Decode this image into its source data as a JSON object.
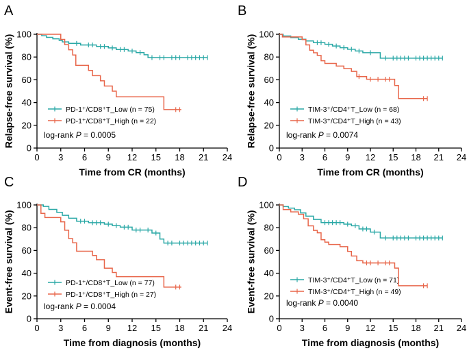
{
  "colors": {
    "low": "#2aa8a6",
    "high": "#e8664a"
  },
  "chart_data": [
    {
      "type": "line",
      "panel": "A",
      "ylabel": "Relapse-free survival (%)",
      "xlabel": "Time from CR (months)",
      "xlim": [
        0,
        24
      ],
      "ylim": [
        0,
        100
      ],
      "xticks": [
        "0",
        "3",
        "6",
        "9",
        "12",
        "15",
        "18",
        "21",
        "24"
      ],
      "yticks": [
        "0",
        "20",
        "40",
        "60",
        "80",
        "100"
      ],
      "stat_prefix": "log-rank ",
      "stat_symbol": "P",
      "stat_value": " = 0.0005",
      "series": [
        {
          "name": "PD-1⁺/CD8⁺T_Low (n = 75)",
          "color_key": "low",
          "steps": [
            [
              0,
              100
            ],
            [
              0.6,
              98.7
            ],
            [
              1.2,
              97.3
            ],
            [
              2.0,
              96.0
            ],
            [
              2.8,
              94.6
            ],
            [
              3.2,
              93.3
            ],
            [
              4.0,
              92.0
            ],
            [
              5.5,
              90.6
            ],
            [
              7.5,
              89.3
            ],
            [
              9.0,
              88.0
            ],
            [
              10.0,
              86.6
            ],
            [
              11.5,
              85.3
            ],
            [
              12.5,
              83.9
            ],
            [
              13.5,
              82.0
            ],
            [
              14.0,
              79.5
            ],
            [
              21.5,
              79.5
            ]
          ],
          "censor": [
            5,
            6.5,
            7,
            8,
            8.5,
            9.5,
            10.5,
            11,
            12,
            13,
            14.5,
            15.5,
            16,
            17,
            17.5,
            18,
            19,
            19.5,
            20,
            20.5,
            21,
            21.5
          ]
        },
        {
          "name": "PD-1⁺/CD8⁺T_High (n = 22)",
          "color_key": "high",
          "steps": [
            [
              0,
              100
            ],
            [
              3.0,
              95.5
            ],
            [
              3.5,
              90.9
            ],
            [
              4.0,
              86.4
            ],
            [
              4.5,
              81.8
            ],
            [
              4.9,
              72.7
            ],
            [
              6.5,
              68.2
            ],
            [
              7.0,
              63.6
            ],
            [
              8.0,
              59.1
            ],
            [
              8.5,
              54.5
            ],
            [
              9.5,
              50.0
            ],
            [
              10.0,
              45.0
            ],
            [
              16.0,
              33.8
            ],
            [
              18.2,
              33.8
            ]
          ],
          "censor": [
            17.5,
            18.0
          ]
        }
      ]
    },
    {
      "type": "line",
      "panel": "B",
      "ylabel": "Relapse-free survival (%)",
      "xlabel": "Time from CR (months)",
      "xlim": [
        0,
        24
      ],
      "ylim": [
        0,
        100
      ],
      "xticks": [
        "0",
        "3",
        "6",
        "9",
        "12",
        "15",
        "18",
        "21",
        "24"
      ],
      "yticks": [
        "0",
        "20",
        "40",
        "60",
        "80",
        "100"
      ],
      "stat_prefix": "log-rank ",
      "stat_symbol": "P",
      "stat_value": " = 0.0074",
      "series": [
        {
          "name": "TIM-3⁺/CD4⁺T_Low (n = 68)",
          "color_key": "low",
          "steps": [
            [
              0,
              100
            ],
            [
              0.5,
              98.5
            ],
            [
              1.5,
              97.1
            ],
            [
              2.5,
              95.6
            ],
            [
              3.5,
              94.1
            ],
            [
              4.5,
              92.6
            ],
            [
              6.0,
              91.2
            ],
            [
              7.0,
              89.7
            ],
            [
              8.0,
              88.2
            ],
            [
              9.0,
              86.8
            ],
            [
              10.0,
              85.3
            ],
            [
              11.0,
              83.8
            ],
            [
              13.3,
              79.0
            ],
            [
              21.5,
              79.0
            ]
          ],
          "censor": [
            5,
            5.5,
            6.5,
            7.5,
            8.5,
            9.5,
            10.5,
            12,
            14,
            15,
            15.5,
            16,
            16.5,
            17,
            18,
            18.5,
            19,
            19.5,
            20,
            20.5,
            21,
            21.5
          ]
        },
        {
          "name": "TIM-3⁺/CD4⁺T_High (n = 43)",
          "color_key": "high",
          "steps": [
            [
              0,
              100
            ],
            [
              0.4,
              97.7
            ],
            [
              3.0,
              95.3
            ],
            [
              3.5,
              90.7
            ],
            [
              4.0,
              86.0
            ],
            [
              4.5,
              83.7
            ],
            [
              5.0,
              81.4
            ],
            [
              5.5,
              76.7
            ],
            [
              6.0,
              74.4
            ],
            [
              7.5,
              72.1
            ],
            [
              8.5,
              69.8
            ],
            [
              9.5,
              67.4
            ],
            [
              10.2,
              62.8
            ],
            [
              11.5,
              60.5
            ],
            [
              15.2,
              55.0
            ],
            [
              15.7,
              43.5
            ],
            [
              19.5,
              43.5
            ]
          ],
          "censor": [
            10.5,
            12,
            13,
            14,
            14.5,
            19,
            19.5
          ]
        }
      ]
    },
    {
      "type": "line",
      "panel": "C",
      "ylabel": "Event-free survival (%)",
      "xlabel": "Time from diagnosis (months)",
      "xlim": [
        0,
        24
      ],
      "ylim": [
        0,
        100
      ],
      "xticks": [
        "0",
        "3",
        "6",
        "9",
        "12",
        "15",
        "18",
        "21",
        "24"
      ],
      "yticks": [
        "0",
        "20",
        "40",
        "60",
        "80",
        "100"
      ],
      "stat_prefix": "log-rank ",
      "stat_symbol": "P",
      "stat_value": " = 0.0004",
      "series": [
        {
          "name": "PD-1⁺/CD8⁺T_Low (n = 77)",
          "color_key": "low",
          "steps": [
            [
              0,
              100
            ],
            [
              0.8,
              98.7
            ],
            [
              1.5,
              96.1
            ],
            [
              2.5,
              93.5
            ],
            [
              3.2,
              90.9
            ],
            [
              4.0,
              88.3
            ],
            [
              5.0,
              85.7
            ],
            [
              6.5,
              84.4
            ],
            [
              8.5,
              83.1
            ],
            [
              9.5,
              81.8
            ],
            [
              10.5,
              80.5
            ],
            [
              12.0,
              77.9
            ],
            [
              14.5,
              75.3
            ],
            [
              15.5,
              70.0
            ],
            [
              16.0,
              66.5
            ],
            [
              21.5,
              66.5
            ]
          ],
          "censor": [
            5.5,
            6,
            7,
            7.5,
            8,
            9,
            10,
            11,
            11.5,
            12.5,
            13,
            14,
            15,
            16.5,
            17,
            18,
            18.5,
            19,
            19.5,
            20,
            20.5,
            21,
            21.5
          ]
        },
        {
          "name": "PD-1⁺/CD8⁺T_High (n = 27)",
          "color_key": "high",
          "steps": [
            [
              0,
              100
            ],
            [
              0.5,
              92.6
            ],
            [
              1.0,
              88.9
            ],
            [
              3.0,
              85.2
            ],
            [
              3.5,
              77.8
            ],
            [
              4.0,
              70.4
            ],
            [
              4.5,
              66.7
            ],
            [
              5.0,
              59.3
            ],
            [
              7.0,
              55.6
            ],
            [
              7.5,
              51.9
            ],
            [
              8.5,
              44.4
            ],
            [
              9.5,
              40.7
            ],
            [
              10.0,
              37.0
            ],
            [
              16.0,
              27.8
            ],
            [
              18.2,
              27.8
            ]
          ],
          "censor": [
            17.5,
            18.0
          ]
        }
      ]
    },
    {
      "type": "line",
      "panel": "D",
      "ylabel": "Event-free survival (%)",
      "xlabel": "Time from diagnosis (months)",
      "xlim": [
        0,
        24
      ],
      "ylim": [
        0,
        100
      ],
      "xticks": [
        "0",
        "3",
        "6",
        "9",
        "12",
        "15",
        "18",
        "21",
        "24"
      ],
      "yticks": [
        "0",
        "20",
        "40",
        "60",
        "80",
        "100"
      ],
      "stat_prefix": "log-rank ",
      "stat_symbol": "P",
      "stat_value": " = 0.0040",
      "series": [
        {
          "name": "TIM-3⁺/CD4⁺T_Low (n = 71)",
          "color_key": "low",
          "steps": [
            [
              0,
              100
            ],
            [
              0.5,
              98.6
            ],
            [
              1.2,
              97.2
            ],
            [
              2.0,
              95.8
            ],
            [
              2.8,
              93.0
            ],
            [
              3.5,
              90.1
            ],
            [
              4.5,
              87.3
            ],
            [
              5.5,
              84.5
            ],
            [
              8.5,
              83.1
            ],
            [
              9.5,
              81.7
            ],
            [
              10.5,
              78.9
            ],
            [
              12.0,
              76.1
            ],
            [
              13.3,
              71.0
            ],
            [
              21.5,
              71.0
            ]
          ],
          "censor": [
            6,
            6.5,
            7,
            7.5,
            8,
            9,
            10,
            11,
            11.5,
            12.5,
            14,
            15,
            15.5,
            16,
            16.5,
            17,
            18,
            18.5,
            19,
            19.5,
            20,
            20.5,
            21,
            21.5
          ]
        },
        {
          "name": "TIM-3⁺/CD4⁺T_High (n = 49)",
          "color_key": "high",
          "steps": [
            [
              0,
              100
            ],
            [
              0.5,
              95.9
            ],
            [
              1.5,
              93.9
            ],
            [
              2.5,
              91.8
            ],
            [
              3.2,
              87.8
            ],
            [
              3.8,
              81.6
            ],
            [
              4.5,
              77.6
            ],
            [
              5.0,
              75.5
            ],
            [
              5.5,
              69.4
            ],
            [
              6.0,
              67.3
            ],
            [
              6.5,
              65.3
            ],
            [
              8.0,
              63.3
            ],
            [
              9.0,
              59.2
            ],
            [
              9.5,
              55.1
            ],
            [
              10.2,
              51.0
            ],
            [
              11.0,
              49.0
            ],
            [
              15.2,
              44.5
            ],
            [
              15.7,
              29.0
            ],
            [
              19.5,
              29.0
            ]
          ],
          "censor": [
            11.5,
            12,
            13,
            14,
            14.5,
            19,
            19.5
          ]
        }
      ]
    }
  ]
}
